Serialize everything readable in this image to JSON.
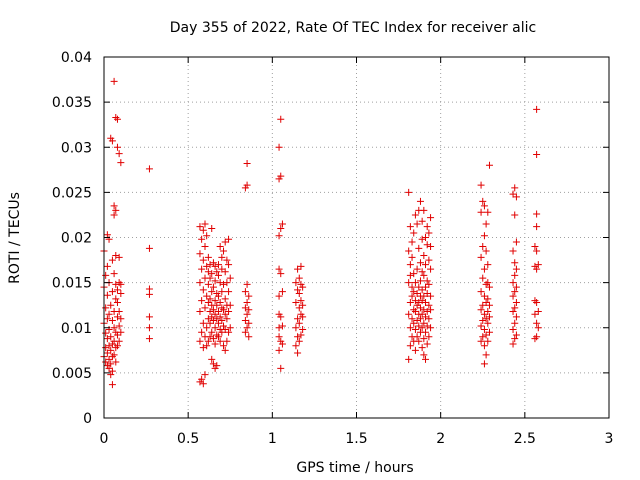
{
  "chart_data": {
    "type": "scatter",
    "title": "Day 355 of 2022, Rate Of TEC Index for receiver alic",
    "xlabel": "GPS time / hours",
    "ylabel": "ROTI / TECUs",
    "xlim": [
      0,
      3
    ],
    "ylim": [
      0,
      0.04
    ],
    "xticks": [
      0,
      0.5,
      1,
      1.5,
      2,
      2.5,
      3
    ],
    "xtick_labels": [
      "0",
      "0.5",
      "1",
      "1.5",
      "2",
      "2.5",
      "3"
    ],
    "yticks": [
      0,
      0.005,
      0.01,
      0.015,
      0.02,
      0.025,
      0.03,
      0.035,
      0.04
    ],
    "ytick_labels": [
      "0",
      "0.005",
      "0.01",
      "0.015",
      "0.02",
      "0.025",
      "0.03",
      "0.035",
      "0.04"
    ],
    "grid": true,
    "marker": "+",
    "color": "#e00000",
    "points": [
      [
        0.0,
        0.0068
      ],
      [
        0.0,
        0.0105
      ],
      [
        0.0,
        0.0145
      ],
      [
        0.0,
        0.0185
      ],
      [
        0.01,
        0.0062
      ],
      [
        0.01,
        0.0078
      ],
      [
        0.01,
        0.0094
      ],
      [
        0.01,
        0.0122
      ],
      [
        0.01,
        0.0158
      ],
      [
        0.02,
        0.0058
      ],
      [
        0.02,
        0.0072
      ],
      [
        0.02,
        0.0088
      ],
      [
        0.02,
        0.011
      ],
      [
        0.02,
        0.0136
      ],
      [
        0.02,
        0.0168
      ],
      [
        0.02,
        0.0203
      ],
      [
        0.03,
        0.0055
      ],
      [
        0.03,
        0.0065
      ],
      [
        0.03,
        0.008
      ],
      [
        0.03,
        0.0098
      ],
      [
        0.03,
        0.0115
      ],
      [
        0.03,
        0.015
      ],
      [
        0.03,
        0.0198
      ],
      [
        0.04,
        0.0048
      ],
      [
        0.04,
        0.006
      ],
      [
        0.04,
        0.0075
      ],
      [
        0.04,
        0.009
      ],
      [
        0.04,
        0.0125
      ],
      [
        0.04,
        0.031
      ],
      [
        0.05,
        0.0037
      ],
      [
        0.05,
        0.0052
      ],
      [
        0.05,
        0.0068
      ],
      [
        0.05,
        0.0082
      ],
      [
        0.05,
        0.0108
      ],
      [
        0.05,
        0.014
      ],
      [
        0.05,
        0.0175
      ],
      [
        0.05,
        0.0307
      ],
      [
        0.06,
        0.007
      ],
      [
        0.06,
        0.0085
      ],
      [
        0.06,
        0.01
      ],
      [
        0.06,
        0.0118
      ],
      [
        0.06,
        0.016
      ],
      [
        0.06,
        0.0225
      ],
      [
        0.06,
        0.0235
      ],
      [
        0.06,
        0.0373
      ],
      [
        0.07,
        0.0062
      ],
      [
        0.07,
        0.0078
      ],
      [
        0.07,
        0.0095
      ],
      [
        0.07,
        0.0132
      ],
      [
        0.07,
        0.0148
      ],
      [
        0.07,
        0.018
      ],
      [
        0.07,
        0.023
      ],
      [
        0.07,
        0.0333
      ],
      [
        0.08,
        0.008
      ],
      [
        0.08,
        0.0092
      ],
      [
        0.08,
        0.0112
      ],
      [
        0.08,
        0.0128
      ],
      [
        0.08,
        0.0142
      ],
      [
        0.08,
        0.03
      ],
      [
        0.08,
        0.0331
      ],
      [
        0.09,
        0.0085
      ],
      [
        0.09,
        0.0102
      ],
      [
        0.09,
        0.0118
      ],
      [
        0.09,
        0.015
      ],
      [
        0.09,
        0.0178
      ],
      [
        0.09,
        0.0293
      ],
      [
        0.1,
        0.0095
      ],
      [
        0.1,
        0.011
      ],
      [
        0.1,
        0.0138
      ],
      [
        0.1,
        0.0148
      ],
      [
        0.1,
        0.0283
      ],
      [
        0.27,
        0.0088
      ],
      [
        0.27,
        0.01
      ],
      [
        0.27,
        0.0112
      ],
      [
        0.27,
        0.0137
      ],
      [
        0.27,
        0.0143
      ],
      [
        0.27,
        0.0188
      ],
      [
        0.27,
        0.0276
      ],
      [
        0.57,
        0.004
      ],
      [
        0.57,
        0.0085
      ],
      [
        0.57,
        0.0118
      ],
      [
        0.57,
        0.015
      ],
      [
        0.57,
        0.0182
      ],
      [
        0.57,
        0.0212
      ],
      [
        0.58,
        0.0043
      ],
      [
        0.58,
        0.0095
      ],
      [
        0.58,
        0.013
      ],
      [
        0.58,
        0.0165
      ],
      [
        0.58,
        0.0198
      ],
      [
        0.59,
        0.0038
      ],
      [
        0.59,
        0.0078
      ],
      [
        0.59,
        0.0105
      ],
      [
        0.59,
        0.0142
      ],
      [
        0.59,
        0.0175
      ],
      [
        0.59,
        0.0208
      ],
      [
        0.6,
        0.0048
      ],
      [
        0.6,
        0.009
      ],
      [
        0.6,
        0.0122
      ],
      [
        0.6,
        0.0155
      ],
      [
        0.6,
        0.019
      ],
      [
        0.6,
        0.0215
      ],
      [
        0.61,
        0.008
      ],
      [
        0.61,
        0.01
      ],
      [
        0.61,
        0.0135
      ],
      [
        0.61,
        0.0168
      ],
      [
        0.61,
        0.0202
      ],
      [
        0.62,
        0.0085
      ],
      [
        0.62,
        0.011
      ],
      [
        0.62,
        0.0128
      ],
      [
        0.62,
        0.0148
      ],
      [
        0.62,
        0.0162
      ],
      [
        0.62,
        0.0178
      ],
      [
        0.63,
        0.009
      ],
      [
        0.63,
        0.0105
      ],
      [
        0.63,
        0.0118
      ],
      [
        0.63,
        0.0132
      ],
      [
        0.63,
        0.0155
      ],
      [
        0.63,
        0.017
      ],
      [
        0.64,
        0.0065
      ],
      [
        0.64,
        0.0095
      ],
      [
        0.64,
        0.0112
      ],
      [
        0.64,
        0.0125
      ],
      [
        0.64,
        0.014
      ],
      [
        0.64,
        0.016
      ],
      [
        0.64,
        0.021
      ],
      [
        0.65,
        0.006
      ],
      [
        0.65,
        0.0088
      ],
      [
        0.65,
        0.0108
      ],
      [
        0.65,
        0.012
      ],
      [
        0.65,
        0.0145
      ],
      [
        0.65,
        0.0172
      ],
      [
        0.66,
        0.0055
      ],
      [
        0.66,
        0.0082
      ],
      [
        0.66,
        0.01
      ],
      [
        0.66,
        0.0115
      ],
      [
        0.66,
        0.013
      ],
      [
        0.66,
        0.0152
      ],
      [
        0.66,
        0.0168
      ],
      [
        0.67,
        0.0058
      ],
      [
        0.67,
        0.0092
      ],
      [
        0.67,
        0.011
      ],
      [
        0.67,
        0.0125
      ],
      [
        0.67,
        0.0138
      ],
      [
        0.67,
        0.0162
      ],
      [
        0.68,
        0.009
      ],
      [
        0.68,
        0.0105
      ],
      [
        0.68,
        0.0118
      ],
      [
        0.68,
        0.0135
      ],
      [
        0.68,
        0.0158
      ],
      [
        0.68,
        0.017
      ],
      [
        0.69,
        0.0085
      ],
      [
        0.69,
        0.0098
      ],
      [
        0.69,
        0.0112
      ],
      [
        0.69,
        0.0128
      ],
      [
        0.69,
        0.015
      ],
      [
        0.69,
        0.019
      ],
      [
        0.7,
        0.0095
      ],
      [
        0.7,
        0.0108
      ],
      [
        0.7,
        0.0122
      ],
      [
        0.7,
        0.014
      ],
      [
        0.7,
        0.0165
      ],
      [
        0.7,
        0.0178
      ],
      [
        0.71,
        0.008
      ],
      [
        0.71,
        0.0102
      ],
      [
        0.71,
        0.012
      ],
      [
        0.71,
        0.0148
      ],
      [
        0.71,
        0.0185
      ],
      [
        0.72,
        0.0075
      ],
      [
        0.72,
        0.0098
      ],
      [
        0.72,
        0.0115
      ],
      [
        0.72,
        0.0132
      ],
      [
        0.72,
        0.0162
      ],
      [
        0.72,
        0.0195
      ],
      [
        0.73,
        0.0085
      ],
      [
        0.73,
        0.011
      ],
      [
        0.73,
        0.0125
      ],
      [
        0.73,
        0.015
      ],
      [
        0.73,
        0.0175
      ],
      [
        0.74,
        0.0095
      ],
      [
        0.74,
        0.0118
      ],
      [
        0.74,
        0.014
      ],
      [
        0.74,
        0.017
      ],
      [
        0.74,
        0.0198
      ],
      [
        0.75,
        0.01
      ],
      [
        0.75,
        0.0125
      ],
      [
        0.75,
        0.0155
      ],
      [
        0.84,
        0.0095
      ],
      [
        0.84,
        0.0108
      ],
      [
        0.84,
        0.0122
      ],
      [
        0.84,
        0.014
      ],
      [
        0.84,
        0.0255
      ],
      [
        0.85,
        0.01
      ],
      [
        0.85,
        0.0115
      ],
      [
        0.85,
        0.0128
      ],
      [
        0.85,
        0.0148
      ],
      [
        0.85,
        0.0258
      ],
      [
        0.85,
        0.0282
      ],
      [
        0.86,
        0.009
      ],
      [
        0.86,
        0.0105
      ],
      [
        0.86,
        0.012
      ],
      [
        0.86,
        0.0135
      ],
      [
        1.04,
        0.0075
      ],
      [
        1.04,
        0.009
      ],
      [
        1.04,
        0.01
      ],
      [
        1.04,
        0.0115
      ],
      [
        1.04,
        0.0135
      ],
      [
        1.04,
        0.0165
      ],
      [
        1.04,
        0.0202
      ],
      [
        1.04,
        0.0265
      ],
      [
        1.04,
        0.03
      ],
      [
        1.05,
        0.0055
      ],
      [
        1.05,
        0.0085
      ],
      [
        1.05,
        0.0112
      ],
      [
        1.05,
        0.016
      ],
      [
        1.05,
        0.021
      ],
      [
        1.05,
        0.0268
      ],
      [
        1.05,
        0.0331
      ],
      [
        1.06,
        0.0082
      ],
      [
        1.06,
        0.0102
      ],
      [
        1.06,
        0.014
      ],
      [
        1.06,
        0.0215
      ],
      [
        1.14,
        0.008
      ],
      [
        1.14,
        0.01
      ],
      [
        1.14,
        0.0128
      ],
      [
        1.14,
        0.015
      ],
      [
        1.15,
        0.0072
      ],
      [
        1.15,
        0.009
      ],
      [
        1.15,
        0.011
      ],
      [
        1.15,
        0.0142
      ],
      [
        1.15,
        0.0165
      ],
      [
        1.16,
        0.0085
      ],
      [
        1.16,
        0.0105
      ],
      [
        1.16,
        0.0122
      ],
      [
        1.16,
        0.0138
      ],
      [
        1.16,
        0.0155
      ],
      [
        1.17,
        0.0092
      ],
      [
        1.17,
        0.0115
      ],
      [
        1.17,
        0.013
      ],
      [
        1.17,
        0.0148
      ],
      [
        1.17,
        0.0168
      ],
      [
        1.18,
        0.0098
      ],
      [
        1.18,
        0.0112
      ],
      [
        1.18,
        0.0125
      ],
      [
        1.18,
        0.0145
      ],
      [
        1.81,
        0.0065
      ],
      [
        1.81,
        0.0115
      ],
      [
        1.81,
        0.015
      ],
      [
        1.81,
        0.0185
      ],
      [
        1.81,
        0.025
      ],
      [
        1.82,
        0.008
      ],
      [
        1.82,
        0.01
      ],
      [
        1.82,
        0.0128
      ],
      [
        1.82,
        0.0158
      ],
      [
        1.82,
        0.017
      ],
      [
        1.82,
        0.0212
      ],
      [
        1.83,
        0.009
      ],
      [
        1.83,
        0.011
      ],
      [
        1.83,
        0.0135
      ],
      [
        1.83,
        0.0145
      ],
      [
        1.83,
        0.0178
      ],
      [
        1.83,
        0.0195
      ],
      [
        1.84,
        0.0085
      ],
      [
        1.84,
        0.0105
      ],
      [
        1.84,
        0.012
      ],
      [
        1.84,
        0.014
      ],
      [
        1.84,
        0.016
      ],
      [
        1.84,
        0.0205
      ],
      [
        1.85,
        0.0075
      ],
      [
        1.85,
        0.0098
      ],
      [
        1.85,
        0.0118
      ],
      [
        1.85,
        0.013
      ],
      [
        1.85,
        0.015
      ],
      [
        1.85,
        0.0225
      ],
      [
        1.86,
        0.009
      ],
      [
        1.86,
        0.0108
      ],
      [
        1.86,
        0.0125
      ],
      [
        1.86,
        0.0138
      ],
      [
        1.86,
        0.0165
      ],
      [
        1.86,
        0.0215
      ],
      [
        1.87,
        0.0085
      ],
      [
        1.87,
        0.0102
      ],
      [
        1.87,
        0.0115
      ],
      [
        1.87,
        0.0128
      ],
      [
        1.87,
        0.0145
      ],
      [
        1.87,
        0.0188
      ],
      [
        1.87,
        0.023
      ],
      [
        1.88,
        0.0095
      ],
      [
        1.88,
        0.011
      ],
      [
        1.88,
        0.0122
      ],
      [
        1.88,
        0.0135
      ],
      [
        1.88,
        0.0152
      ],
      [
        1.88,
        0.0172
      ],
      [
        1.88,
        0.024
      ],
      [
        1.89,
        0.0078
      ],
      [
        1.89,
        0.01
      ],
      [
        1.89,
        0.0115
      ],
      [
        1.89,
        0.013
      ],
      [
        1.89,
        0.0142
      ],
      [
        1.89,
        0.0162
      ],
      [
        1.89,
        0.0198
      ],
      [
        1.89,
        0.0218
      ],
      [
        1.9,
        0.007
      ],
      [
        1.9,
        0.0088
      ],
      [
        1.9,
        0.0105
      ],
      [
        1.9,
        0.012
      ],
      [
        1.9,
        0.0135
      ],
      [
        1.9,
        0.0158
      ],
      [
        1.9,
        0.018
      ],
      [
        1.9,
        0.023
      ],
      [
        1.91,
        0.0065
      ],
      [
        1.91,
        0.0095
      ],
      [
        1.91,
        0.0112
      ],
      [
        1.91,
        0.0128
      ],
      [
        1.91,
        0.0145
      ],
      [
        1.91,
        0.017
      ],
      [
        1.91,
        0.02
      ],
      [
        1.92,
        0.0082
      ],
      [
        1.92,
        0.0102
      ],
      [
        1.92,
        0.0118
      ],
      [
        1.92,
        0.0138
      ],
      [
        1.92,
        0.0152
      ],
      [
        1.92,
        0.0192
      ],
      [
        1.92,
        0.0212
      ],
      [
        1.93,
        0.009
      ],
      [
        1.93,
        0.011
      ],
      [
        1.93,
        0.0125
      ],
      [
        1.93,
        0.0148
      ],
      [
        1.93,
        0.0175
      ],
      [
        1.93,
        0.0205
      ],
      [
        1.94,
        0.01
      ],
      [
        1.94,
        0.012
      ],
      [
        1.94,
        0.0135
      ],
      [
        1.94,
        0.0165
      ],
      [
        1.94,
        0.019
      ],
      [
        1.94,
        0.0222
      ],
      [
        2.24,
        0.0085
      ],
      [
        2.24,
        0.0102
      ],
      [
        2.24,
        0.012
      ],
      [
        2.24,
        0.014
      ],
      [
        2.24,
        0.0178
      ],
      [
        2.24,
        0.0228
      ],
      [
        2.24,
        0.0258
      ],
      [
        2.25,
        0.009
      ],
      [
        2.25,
        0.0108
      ],
      [
        2.25,
        0.0125
      ],
      [
        2.25,
        0.0155
      ],
      [
        2.25,
        0.019
      ],
      [
        2.25,
        0.024
      ],
      [
        2.26,
        0.006
      ],
      [
        2.26,
        0.008
      ],
      [
        2.26,
        0.0098
      ],
      [
        2.26,
        0.0115
      ],
      [
        2.26,
        0.0135
      ],
      [
        2.26,
        0.0165
      ],
      [
        2.26,
        0.0202
      ],
      [
        2.26,
        0.0235
      ],
      [
        2.27,
        0.007
      ],
      [
        2.27,
        0.0092
      ],
      [
        2.27,
        0.011
      ],
      [
        2.27,
        0.0128
      ],
      [
        2.27,
        0.0148
      ],
      [
        2.27,
        0.0185
      ],
      [
        2.27,
        0.0215
      ],
      [
        2.28,
        0.0085
      ],
      [
        2.28,
        0.0105
      ],
      [
        2.28,
        0.0118
      ],
      [
        2.28,
        0.0132
      ],
      [
        2.28,
        0.015
      ],
      [
        2.28,
        0.017
      ],
      [
        2.28,
        0.0228
      ],
      [
        2.29,
        0.0095
      ],
      [
        2.29,
        0.0112
      ],
      [
        2.29,
        0.0125
      ],
      [
        2.29,
        0.0145
      ],
      [
        2.29,
        0.028
      ],
      [
        2.43,
        0.0082
      ],
      [
        2.43,
        0.0098
      ],
      [
        2.43,
        0.0118
      ],
      [
        2.43,
        0.0135
      ],
      [
        2.43,
        0.015
      ],
      [
        2.43,
        0.0185
      ],
      [
        2.43,
        0.0248
      ],
      [
        2.44,
        0.0088
      ],
      [
        2.44,
        0.0105
      ],
      [
        2.44,
        0.0122
      ],
      [
        2.44,
        0.014
      ],
      [
        2.44,
        0.0158
      ],
      [
        2.44,
        0.0172
      ],
      [
        2.44,
        0.0225
      ],
      [
        2.44,
        0.0255
      ],
      [
        2.45,
        0.0092
      ],
      [
        2.45,
        0.0112
      ],
      [
        2.45,
        0.0128
      ],
      [
        2.45,
        0.0145
      ],
      [
        2.45,
        0.0165
      ],
      [
        2.45,
        0.0195
      ],
      [
        2.45,
        0.0245
      ],
      [
        2.56,
        0.0088
      ],
      [
        2.56,
        0.0115
      ],
      [
        2.56,
        0.013
      ],
      [
        2.56,
        0.0168
      ],
      [
        2.56,
        0.019
      ],
      [
        2.57,
        0.009
      ],
      [
        2.57,
        0.0105
      ],
      [
        2.57,
        0.0128
      ],
      [
        2.57,
        0.0165
      ],
      [
        2.57,
        0.0185
      ],
      [
        2.57,
        0.0212
      ],
      [
        2.57,
        0.0226
      ],
      [
        2.57,
        0.0292
      ],
      [
        2.57,
        0.0342
      ],
      [
        2.58,
        0.01
      ],
      [
        2.58,
        0.0118
      ],
      [
        2.58,
        0.017
      ]
    ]
  }
}
